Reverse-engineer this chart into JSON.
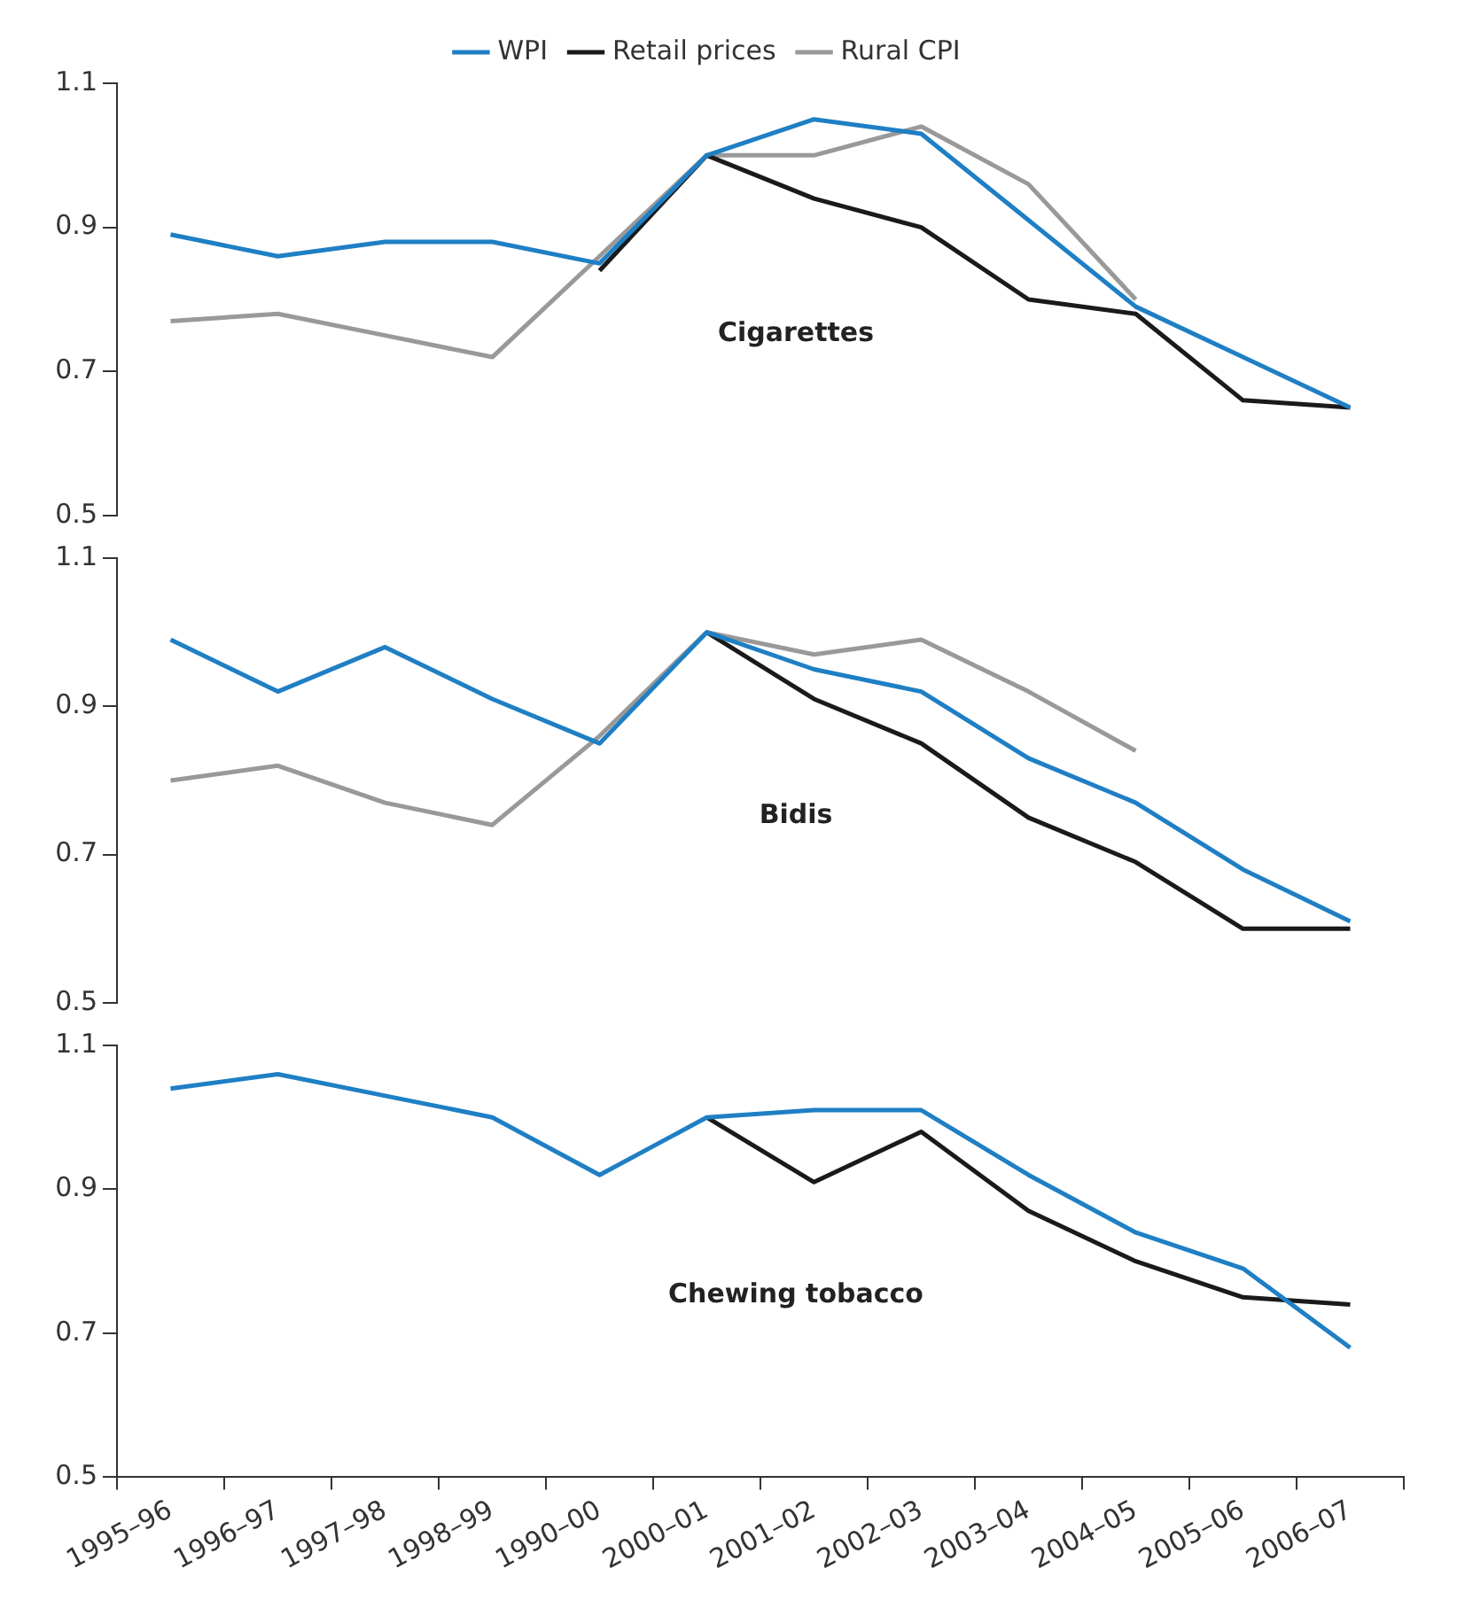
{
  "chart_data": [
    {
      "type": "line",
      "title": "Cigarettes",
      "legend": "top",
      "tick_labels": "y",
      "categories": [
        null,
        null,
        null,
        null,
        null,
        null,
        null,
        null,
        null,
        null,
        null,
        null
      ],
      "ylim": [
        0.5,
        1.1
      ],
      "yticks": [
        0.5,
        0.7,
        0.9,
        1.1
      ],
      "grid": false,
      "marker": "none",
      "series": [
        {
          "name": "WPI",
          "color": "#1f7fc4",
          "values": [
            0.89,
            0.86,
            0.88,
            0.88,
            0.85,
            1.0,
            1.05,
            1.03,
            0.91,
            0.79,
            0.72,
            0.65
          ]
        },
        {
          "name": "Retail prices",
          "color": "#1a1a1a",
          "values": [
            null,
            null,
            null,
            null,
            0.84,
            1.0,
            0.94,
            0.9,
            0.8,
            0.78,
            0.66,
            0.65
          ]
        },
        {
          "name": "Rural CPI",
          "color": "#999999",
          "values": [
            0.77,
            0.78,
            0.75,
            0.72,
            0.86,
            1.0,
            1.0,
            1.04,
            0.96,
            0.8,
            null,
            null
          ]
        }
      ]
    },
    {
      "type": "line",
      "title": "Bidis",
      "legend": false,
      "tick_labels": "y",
      "categories": [
        null,
        null,
        null,
        null,
        null,
        null,
        null,
        null,
        null,
        null,
        null,
        null
      ],
      "ylim": [
        0.5,
        1.1
      ],
      "yticks": [
        0.5,
        0.7,
        0.9,
        1.1
      ],
      "grid": false,
      "marker": "none",
      "series": [
        {
          "color": "#1f7fc4",
          "values": [
            0.99,
            0.92,
            0.98,
            0.91,
            0.85,
            1.0,
            0.95,
            0.92,
            0.83,
            0.77,
            0.68,
            0.61
          ]
        },
        {
          "color": "#1a1a1a",
          "values": [
            null,
            null,
            null,
            null,
            null,
            1.0,
            0.91,
            0.85,
            0.75,
            0.69,
            0.6,
            0.6
          ]
        },
        {
          "color": "#999999",
          "values": [
            0.8,
            0.82,
            0.77,
            0.74,
            0.86,
            1.0,
            0.97,
            0.99,
            0.92,
            0.84,
            null,
            null
          ]
        }
      ]
    },
    {
      "type": "line",
      "title": "Chewing tobacco",
      "legend": false,
      "categories": [
        "1995–96",
        "1996–97",
        "1997–98",
        "1998–99",
        "1990–00",
        "2000–01",
        "2001–02",
        "2002–03",
        "2003–04",
        "2004–05",
        "2005–06",
        "2006–07"
      ],
      "ylim": [
        0.5,
        1.1
      ],
      "yticks": [
        0.5,
        0.7,
        0.9,
        1.1
      ],
      "grid": false,
      "marker": "none",
      "series": [
        {
          "color": "#1f7fc4",
          "values": [
            1.04,
            1.06,
            1.03,
            1.0,
            0.92,
            1.0,
            1.01,
            1.01,
            0.92,
            0.84,
            0.79,
            0.68
          ]
        },
        {
          "color": "#1a1a1a",
          "values": [
            null,
            null,
            null,
            null,
            null,
            1.0,
            0.91,
            0.98,
            0.87,
            0.8,
            0.75,
            0.74
          ]
        }
      ]
    }
  ]
}
